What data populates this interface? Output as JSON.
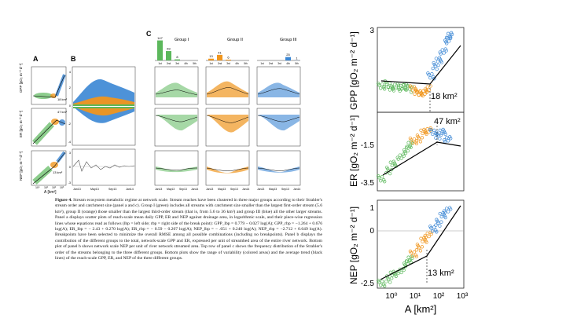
{
  "figure": {
    "panel_a_label": "A",
    "panel_b_label": "B",
    "panel_c_label": "C",
    "group_titles": [
      "Group I",
      "Group II",
      "Group III"
    ],
    "order_labels": [
      "1st",
      "2nd",
      "3rd",
      "4th",
      "5th"
    ],
    "hist_counts": {
      "group1": [
        "147",
        "69",
        "8",
        "",
        ""
      ],
      "group2": [
        "13",
        "41",
        "6",
        "",
        ""
      ],
      "group3": [
        "",
        "",
        "",
        "25",
        "1"
      ]
    },
    "small_axis": {
      "gpp_label": "GPP [gO₂ m⁻² d⁻¹]",
      "er_label": "ER [gO₂ m⁻² d⁻¹]",
      "nep_label": "NEP [gO₂ m⁻² d⁻¹]",
      "a_label": "A [km²]",
      "time_ticks": [
        "Jan13",
        "May13",
        "Sep13",
        "Jan14"
      ],
      "b_y_ticks_top": [
        "4",
        "2",
        "0",
        "-2",
        "-4"
      ],
      "b_y_ticks_bottom": [
        "3",
        "0",
        "-3"
      ],
      "a_x_ticks": [
        "10⁰",
        "10¹",
        "10²",
        "10³"
      ],
      "a_annotations": [
        "18 km²",
        "47 km²",
        "13 km²"
      ]
    }
  },
  "caption": {
    "label": "Figure 4.",
    "text": "Stream ecosystem metabolic regime at network scale. Stream reaches have been clustered in three major groups according to their Strahler's stream order and catchment size (panel a and c). Group I (green) includes all streams with catchment size smaller than the largest first-order stream (5.6 km²), group II (orange) those smaller than the largest third-order stream (that is, from 5.6 to 36 km²) and group III (blue) all the other larger streams. Panel a displays scatter plots of reach-scale mean daily GPP, ER and NEP against drainage area, in logarithmic scale, and their piece-wise regression lines whose equations read as follows (lbp = left side; rbp = right side of the break point): GPP_lbp = 0.779 − 0.027 log(A); GPP_rbp = −1.264 + 0.676 log(A); ER_lbp = − 2.43 + 0.270 log(A); ER_rbp = − 0.59 − 0.207 log(A); NEP_lbp = − .651 + 0.240 log(A); NEP_rbp = −2.712 + 0.649 log(A). Breakpoints have been selected to minimize the overall RMSE among all possible combinations (including no breakpoints). Panel b displays the contribution of the different groups to the total, network-scale GPP and ER, expressed per unit of streambed area of the entire river network. Bottom plot of panel b shows network scale NEP per unit of river network streamed area. Top row of panel c shows the frequency distribution of the Strahler's order of the streams belonging to the three different groups. Bottom plots show the range of variability (colored areas) and the average trend (black lines) of the reach-scale GPP, ER, and NEP of the three different groups."
  },
  "big_panel": {
    "gpp_ylabel": "GPP [gO₂ m⁻² d⁻¹]",
    "er_ylabel": "ER [gO₂ m⁻² d⁻¹]",
    "nep_ylabel": "NEP [gO₂ m⁻² d⁻¹]",
    "xlabel": "A [km²]",
    "gpp_yticks": [
      "3"
    ],
    "er_yticks": [
      "-1.5",
      "-3.5"
    ],
    "nep_yticks": [
      "1",
      "0",
      "-2.5"
    ],
    "xticks": [
      "10⁰",
      "10¹",
      "10²",
      "10³"
    ],
    "annotations": [
      "18 km²",
      "47 km²",
      "13 km²"
    ],
    "colors": {
      "group1": "#5cb85c",
      "group2": "#f0961e",
      "group3": "#3a86d4"
    }
  },
  "chart_data": [
    {
      "type": "bar",
      "title": "Group I",
      "categories": [
        "1st",
        "2nd",
        "3rd",
        "4th",
        "5th"
      ],
      "values": [
        147,
        69,
        8,
        0,
        0
      ]
    },
    {
      "type": "bar",
      "title": "Group II",
      "categories": [
        "1st",
        "2nd",
        "3rd",
        "4th",
        "5th"
      ],
      "values": [
        13,
        41,
        6,
        0,
        0
      ]
    },
    {
      "type": "bar",
      "title": "Group III",
      "categories": [
        "1st",
        "2nd",
        "3rd",
        "4th",
        "5th"
      ],
      "values": [
        0,
        0,
        0,
        25,
        1
      ]
    },
    {
      "type": "scatter",
      "xlabel": "A [km²]",
      "ylabel": "GPP [gO₂ m⁻² d⁻¹]",
      "x_scale": "log",
      "xlim": [
        0.2,
        1000
      ],
      "series": [
        {
          "name": "Group I",
          "x": [
            0.3,
            0.5,
            0.8,
            1.2,
            2,
            3,
            4.5
          ],
          "y": [
            0.8,
            0.9,
            0.7,
            0.85,
            0.75,
            0.8,
            0.7
          ]
        },
        {
          "name": "Group II",
          "x": [
            7,
            10,
            14,
            20,
            28
          ],
          "y": [
            0.7,
            0.6,
            0.5,
            0.6,
            0.7
          ]
        },
        {
          "name": "Group III",
          "x": [
            40,
            60,
            90,
            130,
            200,
            250
          ],
          "y": [
            1.2,
            1.6,
            1.8,
            2.2,
            2.6,
            2.8
          ]
        }
      ]
    },
    {
      "type": "scatter",
      "xlabel": "A [km²]",
      "ylabel": "ER [gO₂ m⁻² d⁻¹]",
      "x_scale": "log",
      "xlim": [
        0.2,
        1000
      ],
      "series": [
        {
          "name": "Group I",
          "x": [
            0.3,
            0.6,
            1,
            2,
            3.5,
            5
          ],
          "y": [
            -3.2,
            -2.9,
            -2.7,
            -2.4,
            -2.2,
            -2.0
          ]
        },
        {
          "name": "Group II",
          "x": [
            7,
            12,
            20,
            30
          ],
          "y": [
            -1.9,
            -1.8,
            -1.6,
            -1.5
          ]
        },
        {
          "name": "Group III",
          "x": [
            50,
            80,
            130,
            200
          ],
          "y": [
            -1.6,
            -1.7,
            -1.6,
            -1.8
          ]
        }
      ]
    },
    {
      "type": "scatter",
      "xlabel": "A [km²]",
      "ylabel": "NEP [gO₂ m⁻² d⁻¹]",
      "x_scale": "log",
      "xlim": [
        0.2,
        1000
      ],
      "series": [
        {
          "name": "Group I",
          "x": [
            0.3,
            0.6,
            1,
            2,
            3.5,
            5
          ],
          "y": [
            -2.4,
            -2.2,
            -2.0,
            -1.8,
            -1.5,
            -1.3
          ]
        },
        {
          "name": "Group II",
          "x": [
            7,
            12,
            20,
            30
          ],
          "y": [
            -1.1,
            -0.8,
            -0.5,
            -0.2
          ]
        },
        {
          "name": "Group III",
          "x": [
            50,
            80,
            130,
            200
          ],
          "y": [
            0.0,
            0.3,
            0.6,
            0.9
          ]
        }
      ]
    }
  ]
}
